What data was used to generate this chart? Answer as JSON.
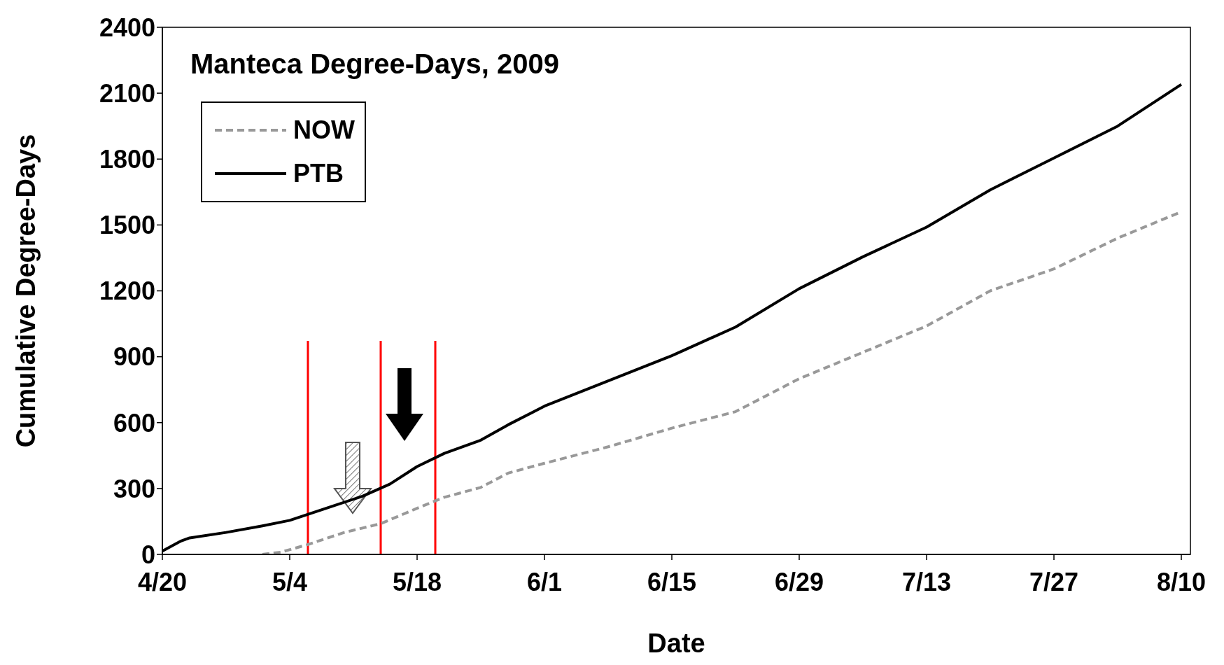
{
  "chart_data": {
    "type": "line",
    "title": "Manteca Degree-Days, 2009",
    "xlabel": "Date",
    "ylabel": "Cumulative Degree-Days",
    "xlim": [
      "--04-20",
      "--08-11"
    ],
    "xticks": [
      {
        "value": "--04-20",
        "label": "4/20"
      },
      {
        "value": "--05-04",
        "label": "5/4"
      },
      {
        "value": "--05-18",
        "label": "5/18"
      },
      {
        "value": "--06-01",
        "label": "6/1"
      },
      {
        "value": "--06-15",
        "label": "6/15"
      },
      {
        "value": "--06-29",
        "label": "6/29"
      },
      {
        "value": "--07-13",
        "label": "7/13"
      },
      {
        "value": "--07-27",
        "label": "7/27"
      },
      {
        "value": "--08-10",
        "label": "8/10"
      }
    ],
    "ylim": [
      0,
      2400
    ],
    "yticks": [
      0,
      300,
      600,
      900,
      1200,
      1500,
      1800,
      2100,
      2400
    ],
    "grid": false,
    "legend": "top left",
    "marker": "none",
    "series": [
      {
        "name": "NOW",
        "color": "#999999",
        "line_style": "dashed",
        "x": [
          "--05-01",
          "--05-03",
          "--05-06",
          "--05-10",
          "--05-14",
          "--05-18",
          "--05-21",
          "--05-25",
          "--05-28",
          "--06-01",
          "--06-08",
          "--06-15",
          "--06-22",
          "--06-29",
          "--07-06",
          "--07-13",
          "--07-20",
          "--07-27",
          "--08-03",
          "--08-10"
        ],
        "values": [
          0,
          10,
          45,
          100,
          140,
          210,
          260,
          305,
          370,
          415,
          490,
          575,
          650,
          800,
          920,
          1040,
          1200,
          1300,
          1440,
          1560
        ]
      },
      {
        "name": "PTB",
        "color": "#000000",
        "line_style": "solid",
        "x": [
          "--04-20",
          "--04-22",
          "--04-23",
          "--04-27",
          "--05-01",
          "--05-04",
          "--05-08",
          "--05-12",
          "--05-15",
          "--05-18",
          "--05-21",
          "--05-25",
          "--05-28",
          "--06-01",
          "--06-08",
          "--06-15",
          "--06-22",
          "--06-29",
          "--07-06",
          "--07-13",
          "--07-20",
          "--07-27",
          "--08-03",
          "--08-10"
        ],
        "values": [
          15,
          60,
          75,
          100,
          130,
          155,
          210,
          265,
          320,
          400,
          460,
          520,
          590,
          675,
          790,
          905,
          1035,
          1210,
          1355,
          1490,
          1660,
          1805,
          1950,
          2140
        ]
      }
    ],
    "ref_lines": [
      {
        "axis": "x",
        "value": "--05-06",
        "color": "#ff0000"
      },
      {
        "axis": "x",
        "value": "--05-14",
        "color": "#ff0000"
      },
      {
        "axis": "x",
        "value": "--05-20",
        "color": "#ff0000"
      }
    ]
  }
}
